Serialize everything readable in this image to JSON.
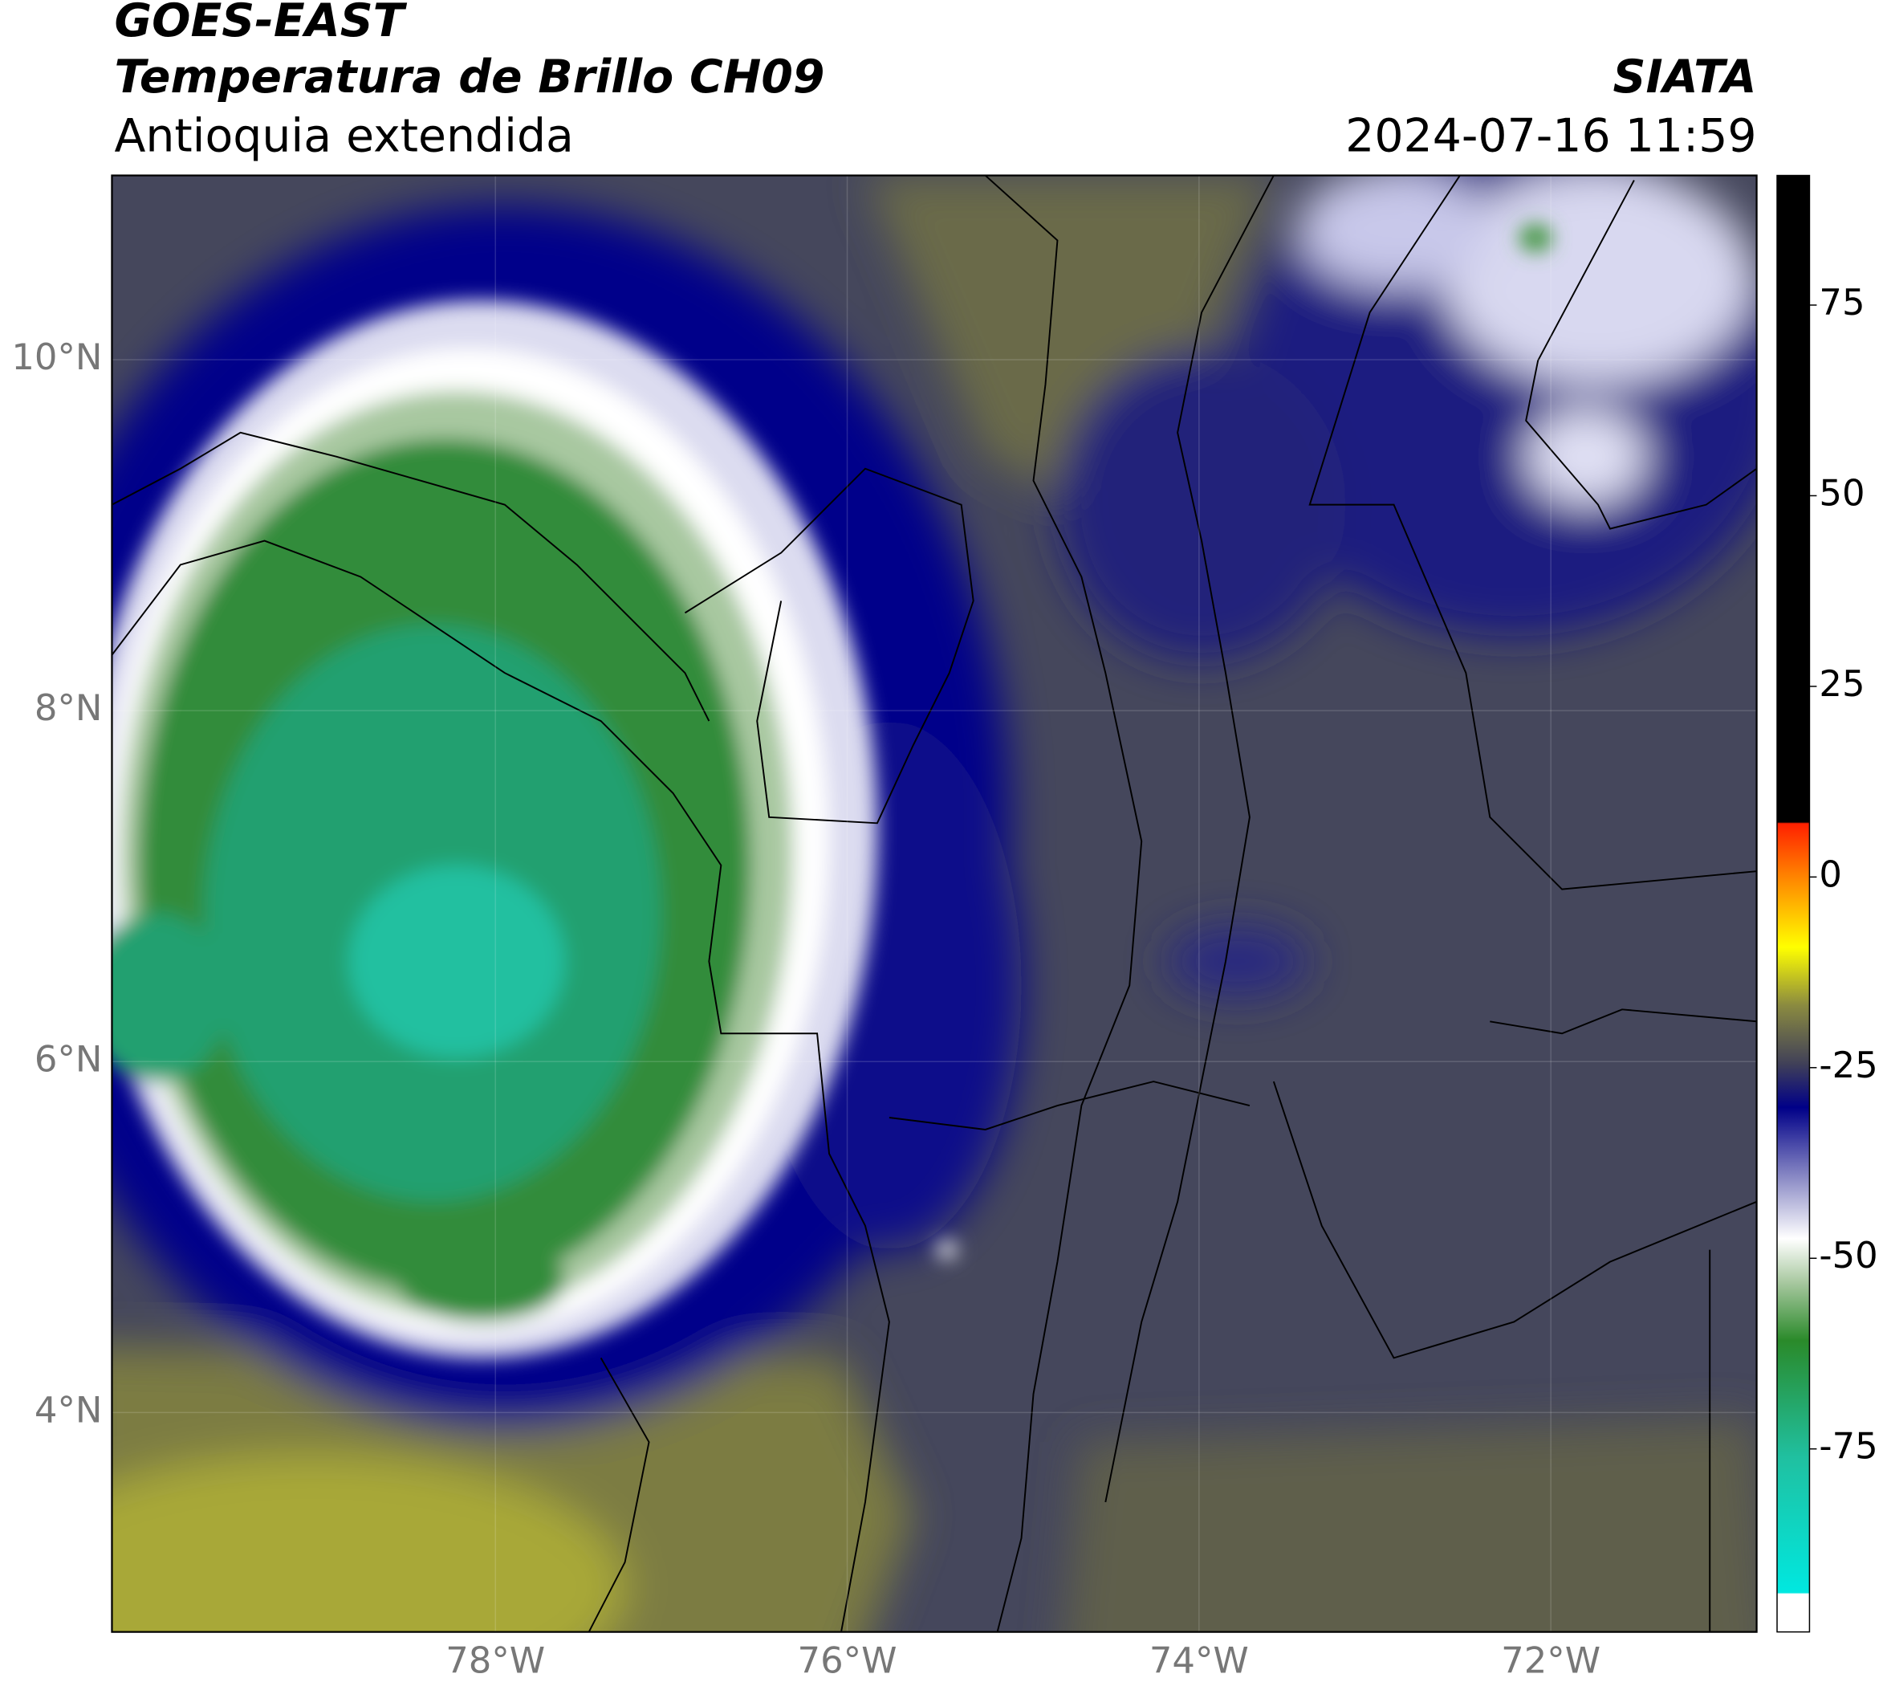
{
  "header": {
    "title": "GOES-EAST",
    "subtitle": "Temperatura de Brillo CH09",
    "region": "Antioquia extendida",
    "source": "SIATA",
    "timestamp": "2024-07-16 11:59"
  },
  "map": {
    "xlim": [
      -80.18,
      -70.83
    ],
    "ylim": [
      2.75,
      11.05
    ],
    "xticks": [
      {
        "value": -78,
        "label": "78°W"
      },
      {
        "value": -76,
        "label": "76°W"
      },
      {
        "value": -74,
        "label": "74°W"
      },
      {
        "value": -72,
        "label": "72°W"
      }
    ],
    "yticks": [
      {
        "value": 4,
        "label": "4°N"
      },
      {
        "value": 6,
        "label": "6°N"
      },
      {
        "value": 8,
        "label": "8°N"
      },
      {
        "value": 10,
        "label": "10°N"
      }
    ],
    "grid": true
  },
  "colorbar": {
    "lim": [
      -99,
      92
    ],
    "ticks": [
      75,
      50,
      25,
      0,
      -25,
      -50,
      -75
    ]
  }
}
